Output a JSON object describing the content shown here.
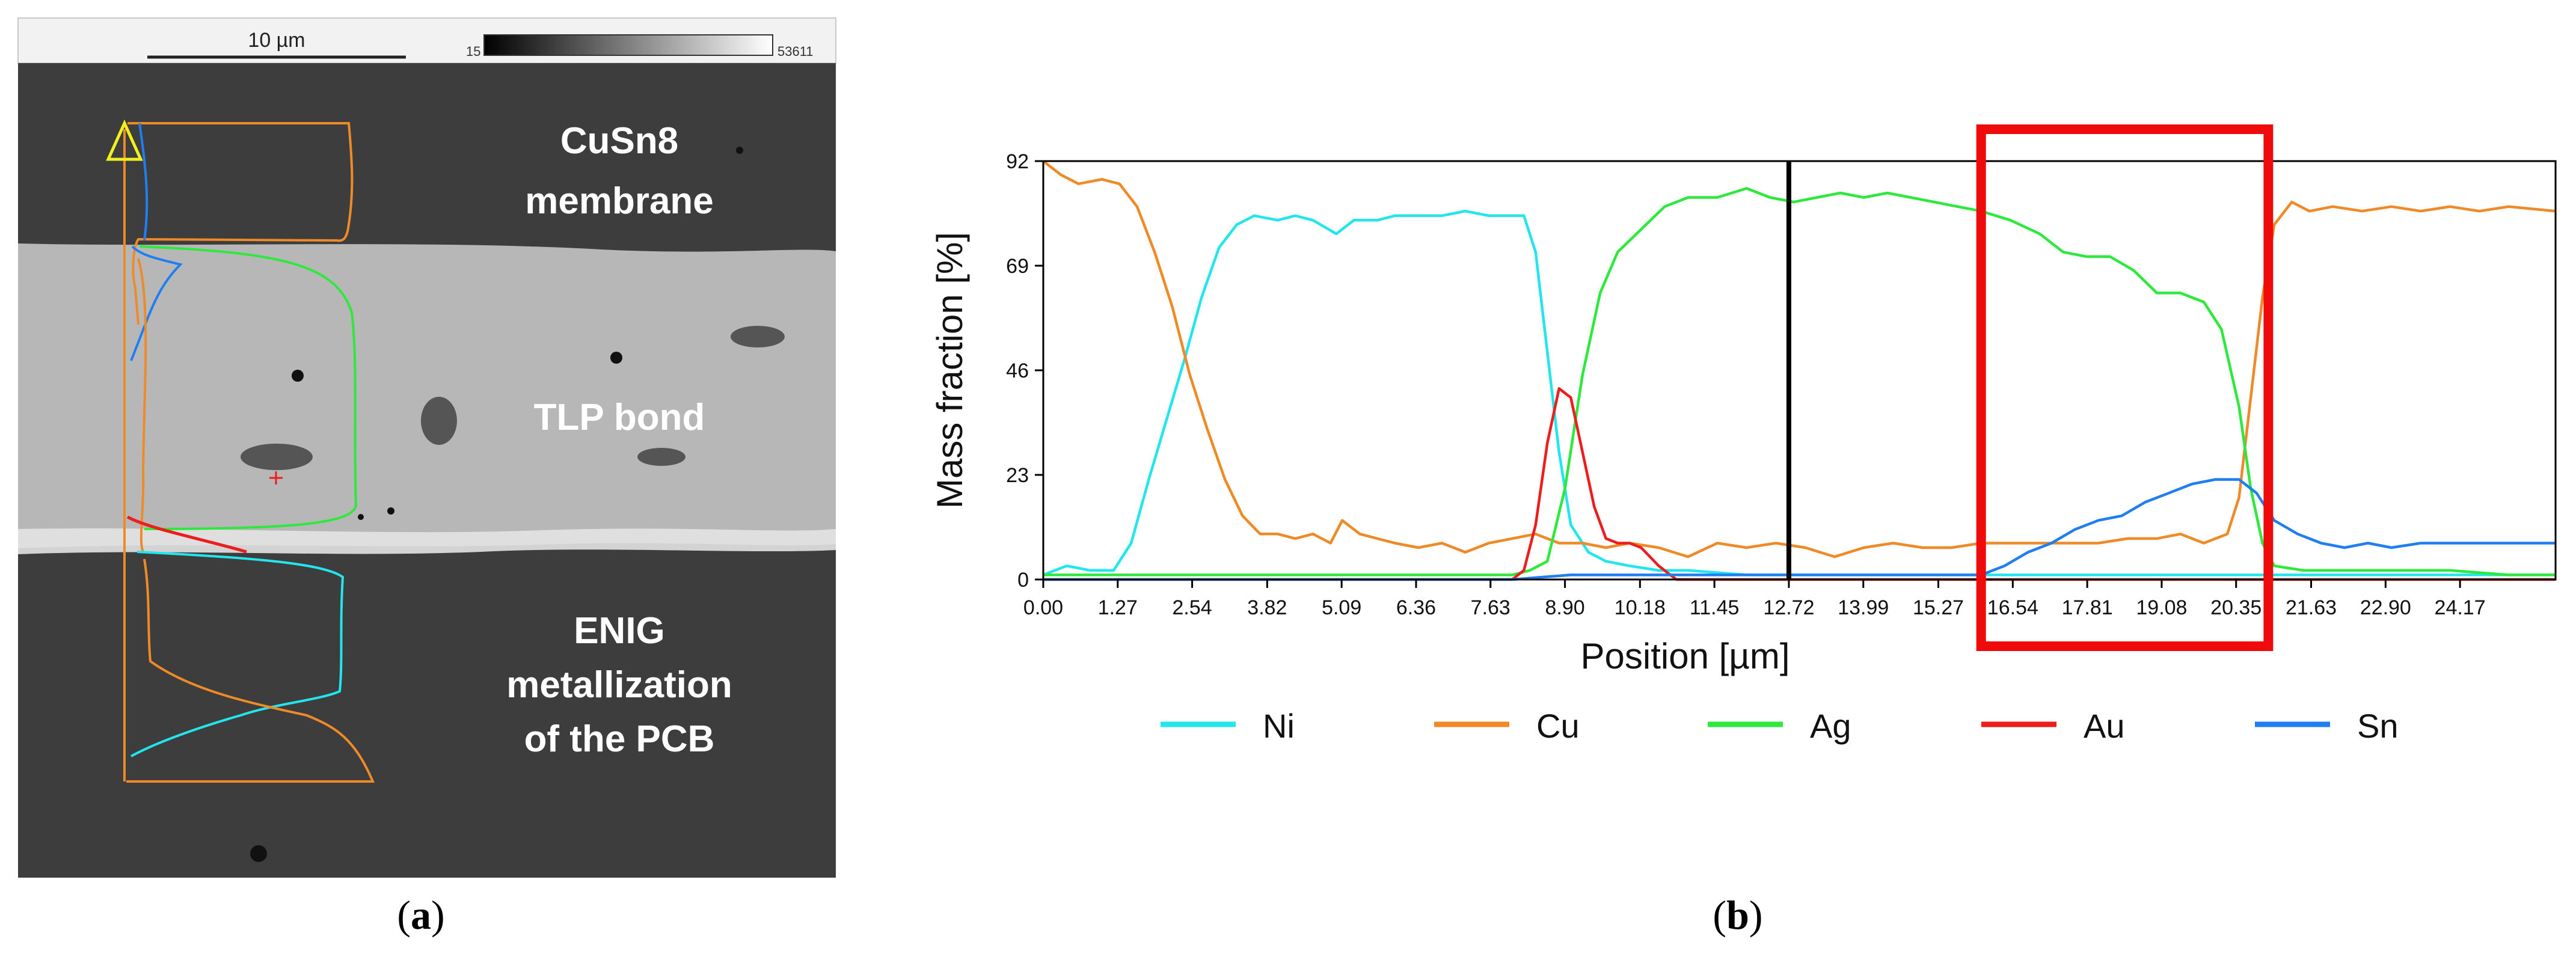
{
  "panel_a": {
    "scalebar_label": "10 µm",
    "gray_min": "15",
    "gray_max": "53611",
    "labels": {
      "top": [
        "CuSn8",
        "membrane"
      ],
      "middle": [
        "TLP bond"
      ],
      "bottom": [
        "ENIG",
        "metallization",
        "of the PCB"
      ]
    },
    "caption": {
      "open": "(",
      "letter": "a",
      "close": ")"
    }
  },
  "panel_b": {
    "caption": {
      "open": "(",
      "letter": "b",
      "close": ")"
    }
  },
  "colors": {
    "Ni": "#22e5ee",
    "Cu": "#ee8a27",
    "Ag": "#2ee83e",
    "Au": "#ee1d1d",
    "Sn": "#1f7ff0",
    "highlight": "#ef0b0b",
    "marker": "#000000"
  },
  "chart_data": {
    "type": "line",
    "title": "",
    "xlabel": "Position [µm]",
    "ylabel": "Mass fraction [%]",
    "xlim": [
      0,
      25.8
    ],
    "ylim": [
      0,
      92
    ],
    "x_ticks": [
      "0.00",
      "1.27",
      "2.54",
      "3.82",
      "5.09",
      "6.36",
      "7.63",
      "8.90",
      "10.18",
      "11.45",
      "12.72",
      "13.99",
      "15.27",
      "16.54",
      "17.81",
      "19.08",
      "20.35",
      "21.63",
      "22.90",
      "24.17"
    ],
    "y_ticks": [
      "0",
      "23",
      "46",
      "69",
      "92"
    ],
    "marker_x": 12.72,
    "highlight_x_range": [
      16.0,
      20.9
    ],
    "series": [
      {
        "name": "Ni",
        "points": [
          [
            0,
            1
          ],
          [
            0.4,
            3
          ],
          [
            0.8,
            2
          ],
          [
            1.2,
            2
          ],
          [
            1.5,
            8
          ],
          [
            1.8,
            22
          ],
          [
            2.1,
            35
          ],
          [
            2.4,
            48
          ],
          [
            2.7,
            62
          ],
          [
            3.0,
            73
          ],
          [
            3.3,
            78
          ],
          [
            3.6,
            80
          ],
          [
            4.0,
            79
          ],
          [
            4.3,
            80
          ],
          [
            4.6,
            79
          ],
          [
            5.0,
            76
          ],
          [
            5.3,
            79
          ],
          [
            5.7,
            79
          ],
          [
            6.0,
            80
          ],
          [
            6.4,
            80
          ],
          [
            6.8,
            80
          ],
          [
            7.2,
            81
          ],
          [
            7.6,
            80
          ],
          [
            8.0,
            80
          ],
          [
            8.2,
            80
          ],
          [
            8.4,
            72
          ],
          [
            8.6,
            50
          ],
          [
            8.8,
            28
          ],
          [
            9.0,
            12
          ],
          [
            9.3,
            6
          ],
          [
            9.6,
            4
          ],
          [
            10.0,
            3
          ],
          [
            10.5,
            2
          ],
          [
            11.0,
            2
          ],
          [
            12.0,
            1
          ],
          [
            13.0,
            1
          ],
          [
            14.5,
            1
          ],
          [
            16.0,
            1
          ],
          [
            17.0,
            1
          ],
          [
            18.0,
            1
          ],
          [
            19.0,
            1
          ],
          [
            20.0,
            1
          ],
          [
            21.0,
            1
          ],
          [
            22.0,
            1
          ],
          [
            23.0,
            1
          ],
          [
            24.0,
            1
          ],
          [
            25.8,
            1
          ]
        ]
      },
      {
        "name": "Cu",
        "points": [
          [
            0,
            92
          ],
          [
            0.3,
            89
          ],
          [
            0.6,
            87
          ],
          [
            1.0,
            88
          ],
          [
            1.3,
            87
          ],
          [
            1.6,
            82
          ],
          [
            1.9,
            72
          ],
          [
            2.2,
            60
          ],
          [
            2.5,
            45
          ],
          [
            2.8,
            33
          ],
          [
            3.1,
            22
          ],
          [
            3.4,
            14
          ],
          [
            3.7,
            10
          ],
          [
            4.0,
            10
          ],
          [
            4.3,
            9
          ],
          [
            4.6,
            10
          ],
          [
            4.9,
            8
          ],
          [
            5.1,
            13
          ],
          [
            5.4,
            10
          ],
          [
            5.7,
            9
          ],
          [
            6.0,
            8
          ],
          [
            6.4,
            7
          ],
          [
            6.8,
            8
          ],
          [
            7.2,
            6
          ],
          [
            7.6,
            8
          ],
          [
            8.0,
            9
          ],
          [
            8.4,
            10
          ],
          [
            8.8,
            8
          ],
          [
            9.2,
            8
          ],
          [
            9.6,
            7
          ],
          [
            10.0,
            8
          ],
          [
            10.5,
            7
          ],
          [
            11.0,
            5
          ],
          [
            11.5,
            8
          ],
          [
            12.0,
            7
          ],
          [
            12.5,
            8
          ],
          [
            13.0,
            7
          ],
          [
            13.5,
            5
          ],
          [
            14.0,
            7
          ],
          [
            14.5,
            8
          ],
          [
            15.0,
            7
          ],
          [
            15.5,
            7
          ],
          [
            16.0,
            8
          ],
          [
            16.5,
            8
          ],
          [
            17.0,
            8
          ],
          [
            17.5,
            8
          ],
          [
            18.0,
            8
          ],
          [
            18.5,
            9
          ],
          [
            19.0,
            9
          ],
          [
            19.4,
            10
          ],
          [
            19.8,
            8
          ],
          [
            20.2,
            10
          ],
          [
            20.4,
            18
          ],
          [
            20.6,
            40
          ],
          [
            20.8,
            62
          ],
          [
            21.0,
            78
          ],
          [
            21.3,
            83
          ],
          [
            21.6,
            81
          ],
          [
            22.0,
            82
          ],
          [
            22.5,
            81
          ],
          [
            23.0,
            82
          ],
          [
            23.5,
            81
          ],
          [
            24.0,
            82
          ],
          [
            24.5,
            81
          ],
          [
            25.0,
            82
          ],
          [
            25.8,
            81
          ]
        ]
      },
      {
        "name": "Ag",
        "points": [
          [
            0,
            1
          ],
          [
            1,
            1
          ],
          [
            2,
            1
          ],
          [
            3,
            1
          ],
          [
            4,
            1
          ],
          [
            5,
            1
          ],
          [
            6,
            1
          ],
          [
            7,
            1
          ],
          [
            8.0,
            1
          ],
          [
            8.3,
            2
          ],
          [
            8.6,
            4
          ],
          [
            8.9,
            20
          ],
          [
            9.2,
            45
          ],
          [
            9.5,
            63
          ],
          [
            9.8,
            72
          ],
          [
            10.2,
            77
          ],
          [
            10.6,
            82
          ],
          [
            11.0,
            84
          ],
          [
            11.5,
            84
          ],
          [
            12.0,
            86
          ],
          [
            12.4,
            84
          ],
          [
            12.8,
            83
          ],
          [
            13.2,
            84
          ],
          [
            13.6,
            85
          ],
          [
            14.0,
            84
          ],
          [
            14.4,
            85
          ],
          [
            14.8,
            84
          ],
          [
            15.2,
            83
          ],
          [
            15.6,
            82
          ],
          [
            16.0,
            81
          ],
          [
            16.5,
            79
          ],
          [
            17.0,
            76
          ],
          [
            17.4,
            72
          ],
          [
            17.8,
            71
          ],
          [
            18.2,
            71
          ],
          [
            18.6,
            68
          ],
          [
            19.0,
            63
          ],
          [
            19.4,
            63
          ],
          [
            19.8,
            61
          ],
          [
            20.1,
            55
          ],
          [
            20.4,
            38
          ],
          [
            20.6,
            20
          ],
          [
            20.8,
            8
          ],
          [
            21.0,
            3
          ],
          [
            21.5,
            2
          ],
          [
            22.0,
            2
          ],
          [
            23.0,
            2
          ],
          [
            24.0,
            2
          ],
          [
            25.0,
            1
          ],
          [
            25.8,
            1
          ]
        ]
      },
      {
        "name": "Au",
        "points": [
          [
            0,
            0
          ],
          [
            2,
            0
          ],
          [
            4,
            0
          ],
          [
            6,
            0
          ],
          [
            7,
            0
          ],
          [
            8.0,
            0
          ],
          [
            8.2,
            2
          ],
          [
            8.4,
            12
          ],
          [
            8.6,
            30
          ],
          [
            8.8,
            42
          ],
          [
            9.0,
            40
          ],
          [
            9.2,
            28
          ],
          [
            9.4,
            16
          ],
          [
            9.6,
            9
          ],
          [
            9.8,
            8
          ],
          [
            10.0,
            8
          ],
          [
            10.2,
            7
          ],
          [
            10.5,
            3
          ],
          [
            10.8,
            0
          ],
          [
            12,
            0
          ],
          [
            14,
            0
          ],
          [
            16,
            0
          ],
          [
            18,
            0
          ],
          [
            20,
            0
          ],
          [
            22,
            0
          ],
          [
            24,
            0
          ],
          [
            25.8,
            0
          ]
        ]
      },
      {
        "name": "Sn",
        "points": [
          [
            0,
            0
          ],
          [
            2,
            0
          ],
          [
            4,
            0
          ],
          [
            6,
            0
          ],
          [
            8,
            0
          ],
          [
            9,
            1
          ],
          [
            10,
            1
          ],
          [
            11,
            1
          ],
          [
            12,
            1
          ],
          [
            13,
            1
          ],
          [
            14,
            1
          ],
          [
            15,
            1
          ],
          [
            16.0,
            1
          ],
          [
            16.4,
            3
          ],
          [
            16.8,
            6
          ],
          [
            17.2,
            8
          ],
          [
            17.6,
            11
          ],
          [
            18.0,
            13
          ],
          [
            18.4,
            14
          ],
          [
            18.8,
            17
          ],
          [
            19.2,
            19
          ],
          [
            19.6,
            21
          ],
          [
            20.0,
            22
          ],
          [
            20.4,
            22
          ],
          [
            20.7,
            19
          ],
          [
            21.0,
            13
          ],
          [
            21.4,
            10
          ],
          [
            21.8,
            8
          ],
          [
            22.2,
            7
          ],
          [
            22.6,
            8
          ],
          [
            23.0,
            7
          ],
          [
            23.5,
            8
          ],
          [
            24.0,
            8
          ],
          [
            24.5,
            8
          ],
          [
            25.0,
            8
          ],
          [
            25.8,
            8
          ]
        ]
      }
    ],
    "legend": [
      "Ni",
      "Cu",
      "Ag",
      "Au",
      "Sn"
    ]
  }
}
